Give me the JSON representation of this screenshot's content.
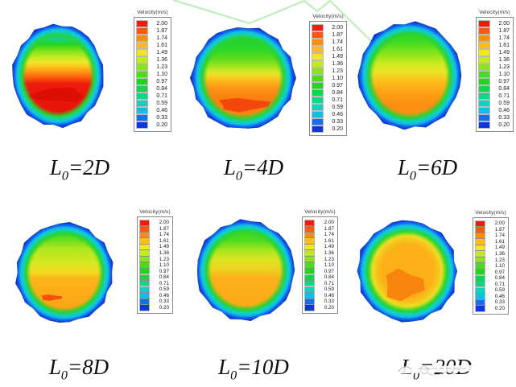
{
  "figure": {
    "kind": "CFD velocity contour comparison, 6 circular pipe cross-sections"
  },
  "colorbar": {
    "title": "Velocity(m/s)",
    "levels": [
      "2.00",
      "1.87",
      "1.74",
      "1.61",
      "1.49",
      "1.36",
      "1.23",
      "1.10",
      "0.97",
      "0.84",
      "0.71",
      "0.59",
      "0.46",
      "0.33",
      "0.20"
    ],
    "colors": [
      "#ee1c0c",
      "#fb5a0c",
      "#fc8d12",
      "#fcbd1a",
      "#f2e52a",
      "#c2ea20",
      "#8ce41a",
      "#4ada1e",
      "#22d41e",
      "#14d44a",
      "#10d488",
      "#0ed2c0",
      "#12bce6",
      "#1470ec",
      "#0c38da"
    ]
  },
  "watermark": {
    "color": "#a6e9a6"
  },
  "chart_data": {
    "type": "heatmap",
    "subtype": "filled-contour-velocity",
    "colorbar_title": "Velocity(m/s)",
    "levels": [
      2.0,
      1.87,
      1.74,
      1.61,
      1.49,
      1.36,
      1.23,
      1.1,
      0.97,
      0.84,
      0.71,
      0.59,
      0.46,
      0.33,
      0.2
    ],
    "rim": [
      {
        "at": 0.7,
        "c": "#2bd232",
        "o": 0
      },
      {
        "at": 0.795,
        "c": "#2bd232",
        "o": 1
      },
      {
        "at": 0.862,
        "c": "#0ed2c0",
        "o": 1
      },
      {
        "at": 0.908,
        "c": "#12bce6",
        "o": 1
      },
      {
        "at": 0.948,
        "c": "#1470ec",
        "o": 1
      },
      {
        "at": 1.0,
        "c": "#0c38da",
        "o": 1
      }
    ],
    "plots": [
      {
        "label": "L0=2D",
        "label_prefix": "L",
        "label_sub": "0",
        "label_rest": "=2D",
        "gradient": [
          {
            "at": 0,
            "c": "#1243e0"
          },
          {
            "at": 0.08,
            "c": "#1470ec"
          },
          {
            "at": 0.13,
            "c": "#0ed2c0"
          },
          {
            "at": 0.19,
            "c": "#22d41e"
          },
          {
            "at": 0.27,
            "c": "#8ce41a"
          },
          {
            "at": 0.32,
            "c": "#c2ea20"
          },
          {
            "at": 0.37,
            "c": "#f2e52a"
          },
          {
            "at": 0.42,
            "c": "#fcbd1a"
          },
          {
            "at": 0.47,
            "c": "#fc8d12"
          },
          {
            "at": 0.52,
            "c": "#fb5a0c"
          },
          {
            "at": 0.58,
            "c": "#ee1c0c"
          },
          {
            "at": 0.88,
            "c": "#e81208"
          },
          {
            "at": 0.95,
            "c": "#fb5a0c"
          },
          {
            "at": 1,
            "c": "#fc8d12"
          }
        ],
        "patches": [
          {
            "cx": 0,
            "cy": 0.38,
            "rx": 0.62,
            "ry": 0.14,
            "color": "#dd0f04"
          }
        ]
      },
      {
        "label": "L0=4D",
        "label_prefix": "L",
        "label_sub": "0",
        "label_rest": "=4D",
        "gradient": [
          {
            "at": 0,
            "c": "#1ecc28"
          },
          {
            "at": 0.22,
            "c": "#2ad62a"
          },
          {
            "at": 0.32,
            "c": "#63de1c"
          },
          {
            "at": 0.4,
            "c": "#aee81e"
          },
          {
            "at": 0.46,
            "c": "#e8e426"
          },
          {
            "at": 0.52,
            "c": "#fcbd1a"
          },
          {
            "at": 0.6,
            "c": "#fd9317"
          },
          {
            "at": 0.72,
            "c": "#fb7d10"
          },
          {
            "at": 0.9,
            "c": "#fb8c12"
          },
          {
            "at": 1,
            "c": "#fc9a14"
          }
        ],
        "patches": [
          {
            "cx": 0,
            "cy": 0.52,
            "rx": 0.5,
            "ry": 0.13,
            "color": "#f4470c"
          }
        ]
      },
      {
        "label": "L0=6D",
        "label_prefix": "L",
        "label_sub": "0",
        "label_rest": "=6D",
        "gradient": [
          {
            "at": 0,
            "c": "#2ad62a"
          },
          {
            "at": 0.18,
            "c": "#3cda22"
          },
          {
            "at": 0.3,
            "c": "#8ce41a"
          },
          {
            "at": 0.38,
            "c": "#c8ea20"
          },
          {
            "at": 0.46,
            "c": "#ece626"
          },
          {
            "at": 0.56,
            "c": "#fcbd1a"
          },
          {
            "at": 0.66,
            "c": "#fda015"
          },
          {
            "at": 0.78,
            "c": "#fc8d12"
          },
          {
            "at": 1,
            "c": "#fd9d15"
          }
        ],
        "patches": []
      },
      {
        "label": "L0=8D",
        "label_prefix": "L",
        "label_sub": "0",
        "label_rest": "=8D",
        "gradient": [
          {
            "at": 0,
            "c": "#2ad62a"
          },
          {
            "at": 0.16,
            "c": "#63de1c"
          },
          {
            "at": 0.26,
            "c": "#aee81e"
          },
          {
            "at": 0.4,
            "c": "#d8e822"
          },
          {
            "at": 0.5,
            "c": "#f2da20"
          },
          {
            "at": 0.56,
            "c": "#fcb51a"
          },
          {
            "at": 0.8,
            "c": "#fda716"
          },
          {
            "at": 1,
            "c": "#fc9a14"
          }
        ],
        "patches": [
          {
            "cx": -0.28,
            "cy": 0.5,
            "rx": 0.22,
            "ry": 0.06,
            "color": "#f4520e"
          }
        ]
      },
      {
        "label": "L0=10D",
        "label_prefix": "L",
        "label_sub": "0",
        "label_rest": "=10D",
        "gradient": [
          {
            "at": 0,
            "c": "#2ad62a"
          },
          {
            "at": 0.2,
            "c": "#4eda1e"
          },
          {
            "at": 0.3,
            "c": "#a6e61c"
          },
          {
            "at": 0.4,
            "c": "#e0e424"
          },
          {
            "at": 0.5,
            "c": "#f0cf1e"
          },
          {
            "at": 0.58,
            "c": "#fcb01a"
          },
          {
            "at": 0.85,
            "c": "#fcaa16"
          },
          {
            "at": 1,
            "c": "#fcb01a"
          }
        ],
        "patches": []
      },
      {
        "label": "L0=20D",
        "label_prefix": "L",
        "label_sub": "0",
        "label_rest": "=20D",
        "radial": true,
        "gradient": [
          {
            "at": 0,
            "c": "#fcb018"
          },
          {
            "at": 0.52,
            "c": "#fcb018"
          },
          {
            "at": 0.62,
            "c": "#f6c41c"
          },
          {
            "at": 0.7,
            "c": "#eede22"
          },
          {
            "at": 0.78,
            "c": "#bce81e"
          },
          {
            "at": 0.85,
            "c": "#5ede1c"
          },
          {
            "at": 1,
            "c": "#2ad62a"
          }
        ],
        "patches": [
          {
            "cx": -0.08,
            "cy": 0.28,
            "rx": 0.4,
            "ry": 0.3,
            "color": "#f8860e"
          }
        ]
      }
    ]
  }
}
